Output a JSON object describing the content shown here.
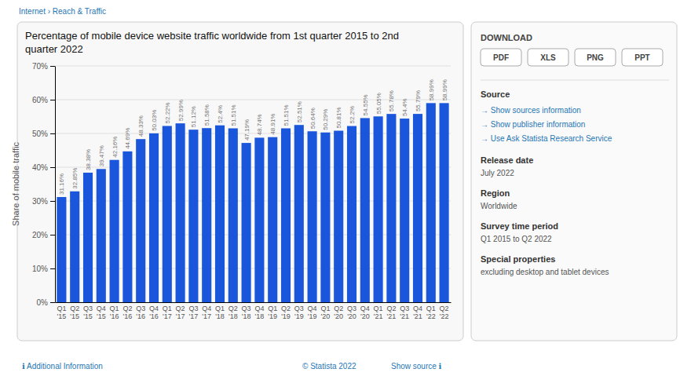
{
  "chart_data": {
    "type": "bar",
    "title": "Percentage of mobile device website traffic worldwide from 1st quarter 2015 to 2nd\nquarter 2022",
    "ylabel": "Share of mobile traffic",
    "categories": [
      "Q1\n'15",
      "Q2\n'15",
      "Q3\n'15",
      "Q4\n'15",
      "Q1\n'16",
      "Q2\n'16",
      "Q3\n'16",
      "Q4\n'16",
      "Q1\n'17",
      "Q2\n'17",
      "Q3\n'17",
      "Q4\n'17",
      "Q1\n'18",
      "Q2\n'18",
      "Q3\n'18",
      "Q4\n'18",
      "Q1\n'19",
      "Q2\n'19",
      "Q3\n'19",
      "Q4\n'19",
      "Q1\n'20",
      "Q2\n'20",
      "Q3\n'20",
      "Q4\n'20",
      "Q1\n'21",
      "Q2\n'21",
      "Q3\n'21",
      "Q4\n'21",
      "Q1\n'22",
      "Q2\n'22"
    ],
    "values": [
      31.16,
      32.85,
      38.38,
      39.47,
      42.16,
      44.69,
      48.33,
      50.03,
      52.22,
      52.99,
      51.12,
      51.58,
      52.4,
      51.51,
      47.19,
      48.74,
      48.91,
      51.51,
      52.51,
      50.64,
      50.29,
      50.81,
      52.2,
      54.55,
      55.05,
      55.78,
      54.4,
      55.79,
      58.99,
      58.99
    ],
    "value_labels": [
      "31.16%",
      "32.85%",
      "38.38%",
      "39.47%",
      "42.16%",
      "44.69%",
      "48.33%",
      "50.03%",
      "52.22%",
      "52.99%",
      "51.12%",
      "51.58%",
      "52.4%",
      "51.51%",
      "47.19%",
      "48.74%",
      "48.91%",
      "51.51%",
      "52.51%",
      "50.64%",
      "50.29%",
      "50.81%",
      "52.2%",
      "54.55%",
      "55.05%",
      "55.78%",
      "54.4%",
      "55.79%",
      "58.99%",
      "58.99%"
    ],
    "data_labels": true,
    "color": "#1a56db",
    "ylim": [
      0,
      70
    ],
    "yticks": [
      {
        "value": 0,
        "label": "0%"
      },
      {
        "value": 10,
        "label": "10%"
      },
      {
        "value": 20,
        "label": "20%"
      },
      {
        "value": 30,
        "label": "30%"
      },
      {
        "value": 40,
        "label": "40%"
      },
      {
        "value": 50,
        "label": "50%"
      },
      {
        "value": 60,
        "label": "60%"
      },
      {
        "value": 70,
        "label": "70%"
      }
    ],
    "grid": true,
    "annotations": [
      "Internet › Reach & Traffic",
      "ℹ Additional Information",
      "© Statista 2022",
      "Show source ℹ",
      "DOWNLOAD",
      "PDF",
      "XLS",
      "PNG",
      "PPT",
      "Source",
      "→ Show sources information",
      "→ Show publisher information",
      "→ Use Ask Statista Research Service",
      "Release date",
      "July 2022",
      "Region",
      "Worldwide",
      "Survey time period",
      "Q1 2015 to Q2 2022",
      "Special properties",
      "excluding desktop and tablet devices"
    ]
  }
}
